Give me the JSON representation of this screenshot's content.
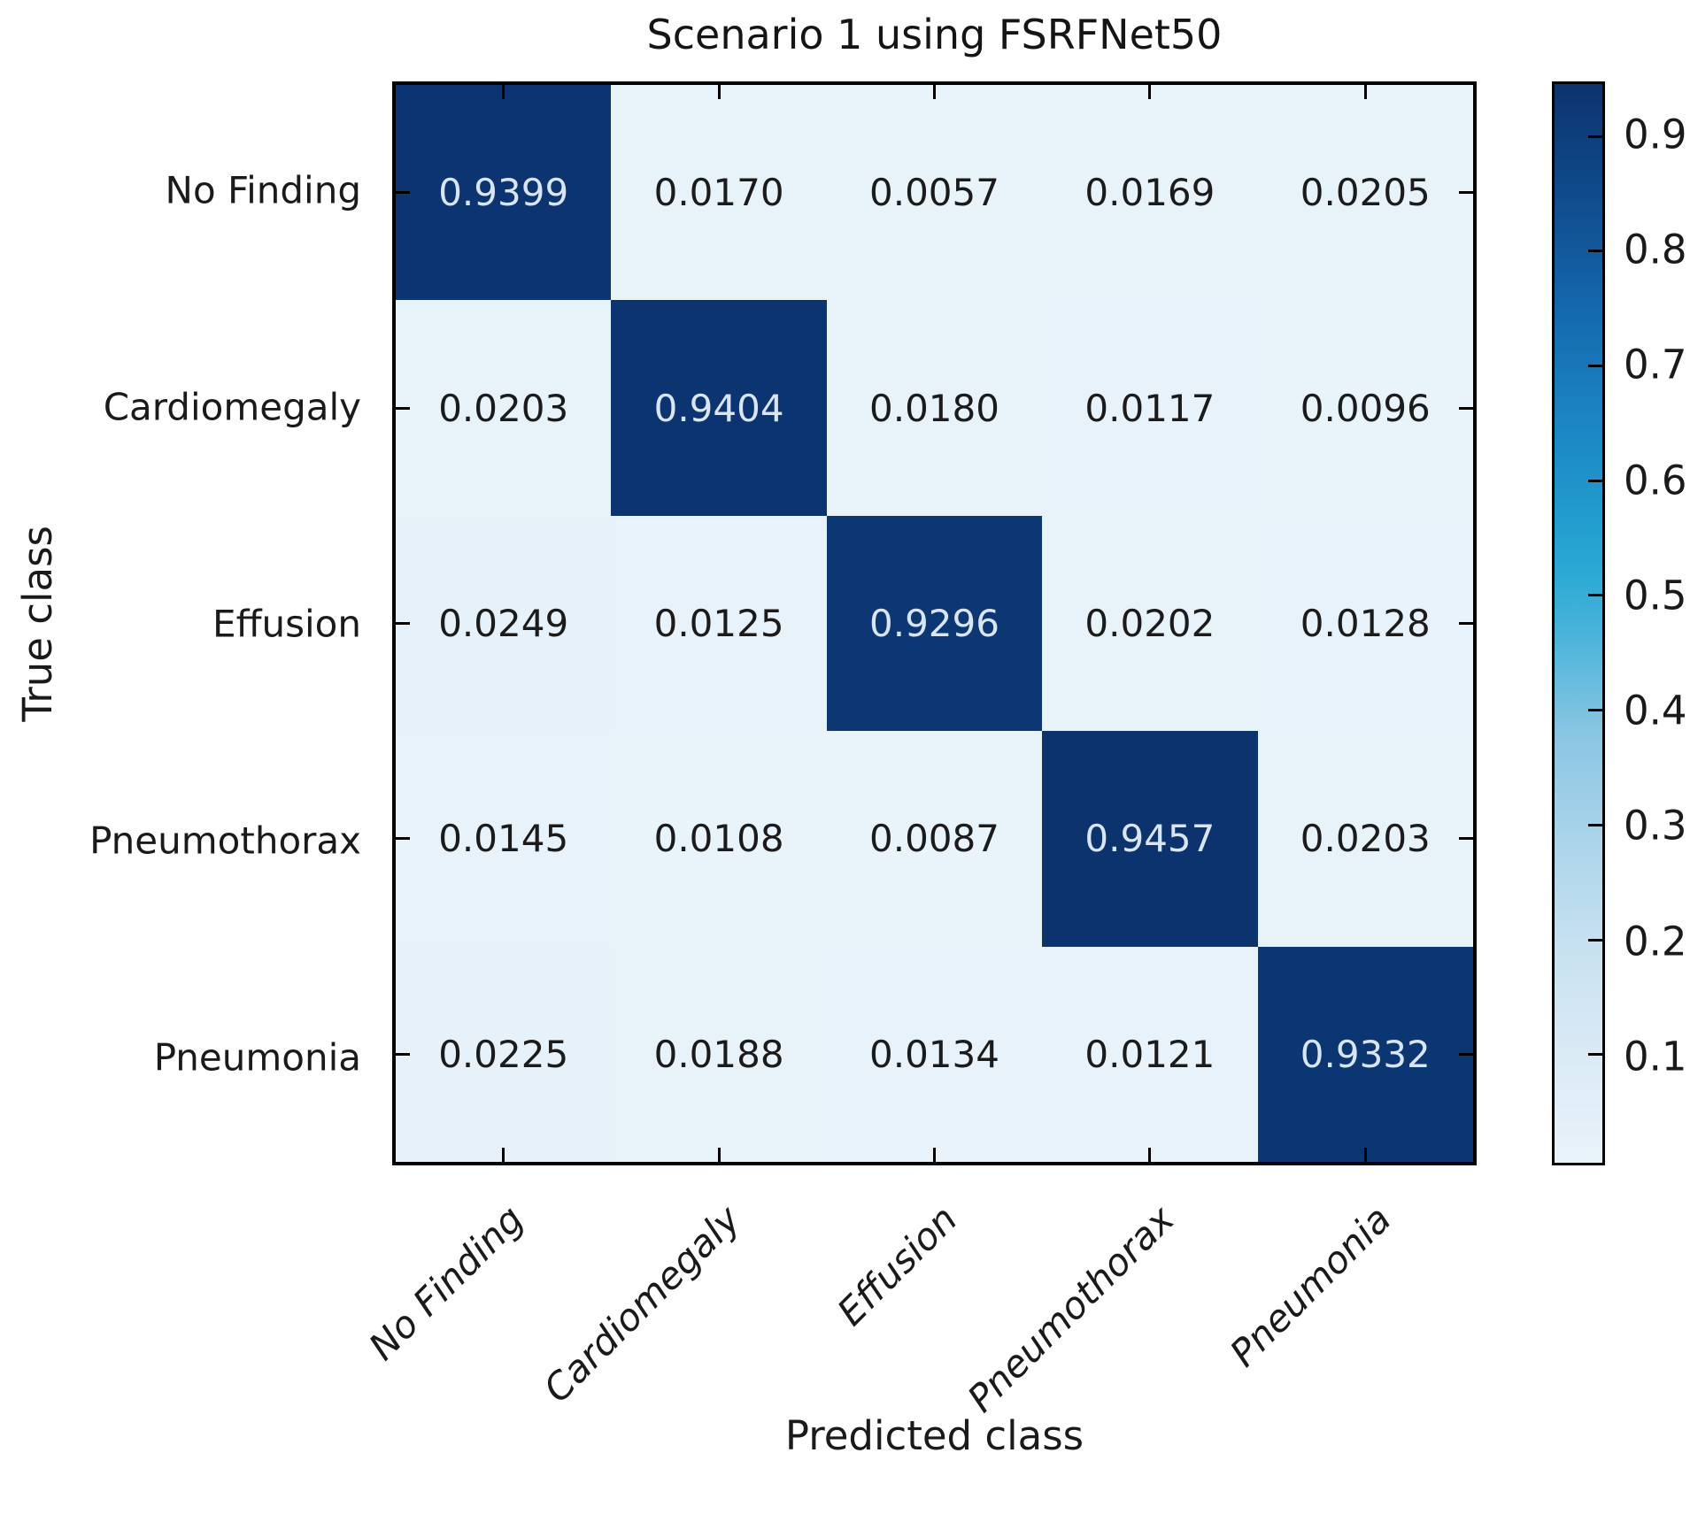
{
  "chart_data": {
    "type": "heatmap",
    "title": "Scenario 1 using FSRFNet50",
    "xlabel": "Predicted class",
    "ylabel": "True class",
    "classes": [
      "No Finding",
      "Cardiomegaly",
      "Effusion",
      "Pneumothorax",
      "Pneumonia"
    ],
    "matrix": [
      [
        0.9399,
        0.017,
        0.0057,
        0.0169,
        0.0205
      ],
      [
        0.0203,
        0.9404,
        0.018,
        0.0117,
        0.0096
      ],
      [
        0.0249,
        0.0125,
        0.9296,
        0.0202,
        0.0128
      ],
      [
        0.0145,
        0.0108,
        0.0087,
        0.9457,
        0.0203
      ],
      [
        0.0225,
        0.0188,
        0.0134,
        0.0121,
        0.9332
      ]
    ],
    "value_decimals": 4,
    "vmin": 0.0057,
    "vmax": 0.9457,
    "colorbar_ticks": [
      "0.9",
      "0.8",
      "0.7",
      "0.6",
      "0.5",
      "0.4",
      "0.3",
      "0.2",
      "0.1"
    ],
    "colormap_stops": [
      [
        0.0,
        "#e9f3fa"
      ],
      [
        0.1,
        "#daeaf5"
      ],
      [
        0.2,
        "#c7e1f0"
      ],
      [
        0.3,
        "#aad4ea"
      ],
      [
        0.4,
        "#88c5e2"
      ],
      [
        0.5,
        "#44b1d9"
      ],
      [
        0.55,
        "#2aa9d3"
      ],
      [
        0.6,
        "#219bce"
      ],
      [
        0.7,
        "#1b82c1"
      ],
      [
        0.8,
        "#1465aa"
      ],
      [
        0.9,
        "#0f4b8b"
      ],
      [
        1.0,
        "#0c336e"
      ]
    ],
    "cell_text_light": "#d9e5f2",
    "cell_text_dark": "#1b1b1b",
    "axis_color": "#000000",
    "legend_position": "right",
    "grid": false
  }
}
